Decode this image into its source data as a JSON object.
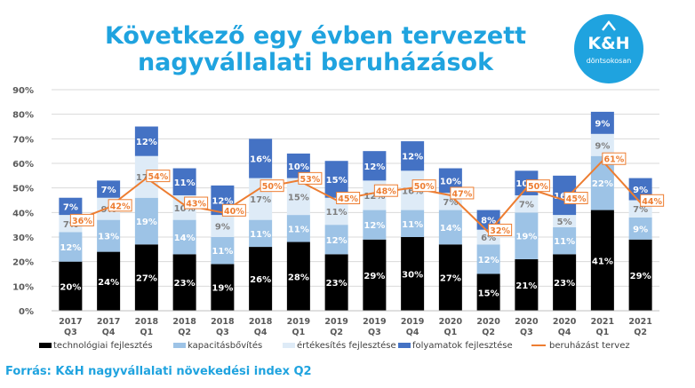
{
  "header": {
    "title_line1": "Következő egy évben tervezett",
    "title_line2": "nagyvállalati beruházások"
  },
  "logo": {
    "brand": "K&H",
    "slogan": "döntsokosan"
  },
  "source": "Forrás: K&H nagyvállalati növekedési index Q2",
  "colors": {
    "tech": "#000000",
    "kapacitas": "#9dc3e6",
    "ertekesites": "#deebf7",
    "folyamat": "#4472c4",
    "plan": "#ed7d31",
    "brand": "#1fa3df"
  },
  "chart_data": {
    "type": "bar",
    "stacked": true,
    "ylim": [
      0,
      90
    ],
    "yticks": [
      "0%",
      "10%",
      "20%",
      "30%",
      "40%",
      "50%",
      "60%",
      "70%",
      "80%",
      "90%"
    ],
    "grid": true,
    "legend_position": "bottom",
    "categories": [
      [
        "2017",
        "Q3"
      ],
      [
        "2017",
        "Q4"
      ],
      [
        "2018",
        "Q1"
      ],
      [
        "2018",
        "Q2"
      ],
      [
        "2018",
        "Q3"
      ],
      [
        "2018",
        "Q4"
      ],
      [
        "2019",
        "Q1"
      ],
      [
        "2019",
        "Q2"
      ],
      [
        "2019",
        "Q3"
      ],
      [
        "2019",
        "Q4"
      ],
      [
        "2020",
        "Q1"
      ],
      [
        "2020",
        "Q2"
      ],
      [
        "2020",
        "Q3"
      ],
      [
        "2020",
        "Q4"
      ],
      [
        "2021",
        "Q1"
      ],
      [
        "2021",
        "Q2"
      ]
    ],
    "series": [
      {
        "name": "technológiai fejlesztés",
        "key": "tech",
        "values": [
          20,
          24,
          27,
          23,
          19,
          26,
          28,
          23,
          29,
          30,
          27,
          15,
          21,
          23,
          41,
          29
        ]
      },
      {
        "name": "kapacitásbővítés",
        "key": "kapacitas",
        "values": [
          12,
          13,
          19,
          14,
          11,
          11,
          11,
          12,
          12,
          11,
          14,
          12,
          19,
          11,
          22,
          9
        ]
      },
      {
        "name": "értékesítés fejlesztése",
        "key": "ertekesites",
        "values": [
          7,
          9,
          17,
          10,
          9,
          17,
          15,
          11,
          12,
          16,
          7,
          6,
          7,
          5,
          9,
          7
        ]
      },
      {
        "name": "folyamatok fejlesztése",
        "key": "folyamat",
        "values": [
          7,
          7,
          12,
          11,
          12,
          16,
          10,
          15,
          12,
          12,
          10,
          8,
          10,
          16,
          9,
          9
        ]
      }
    ],
    "line": {
      "name": "beruházást tervez",
      "values": [
        36,
        42,
        54,
        43,
        40,
        50,
        53,
        45,
        48,
        50,
        47,
        32,
        50,
        45,
        61,
        44
      ]
    }
  }
}
